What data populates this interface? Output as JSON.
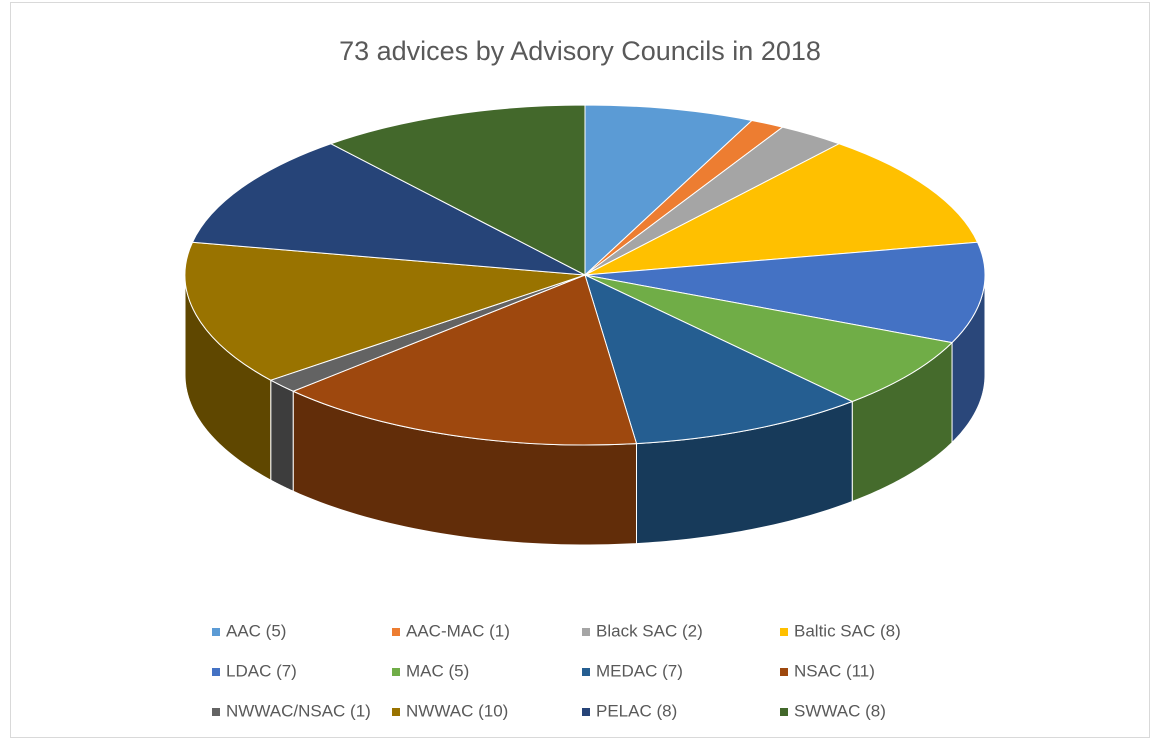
{
  "chart_data": {
    "type": "pie3d",
    "title": "73 advices by Advisory Councils in 2018",
    "categories": [
      "AAC (5)",
      "AAC-MAC (1)",
      "Black SAC (2)",
      "Baltic SAC (8)",
      "LDAC (7)",
      "MAC (5)",
      "MEDAC (7)",
      "NSAC (11)",
      "NWWAC/NSAC (1)",
      "NWWAC (10)",
      "PELAC (8)",
      "SWWAC (8)"
    ],
    "values": [
      5,
      1,
      2,
      8,
      7,
      5,
      7,
      11,
      1,
      10,
      8,
      8
    ],
    "colors": [
      "#5b9bd5",
      "#ed7d31",
      "#a5a5a5",
      "#ffc000",
      "#4472c4",
      "#70ad47",
      "#255e91",
      "#9e480e",
      "#636363",
      "#997300",
      "#264478",
      "#43682b"
    ],
    "legend": "bottom"
  }
}
